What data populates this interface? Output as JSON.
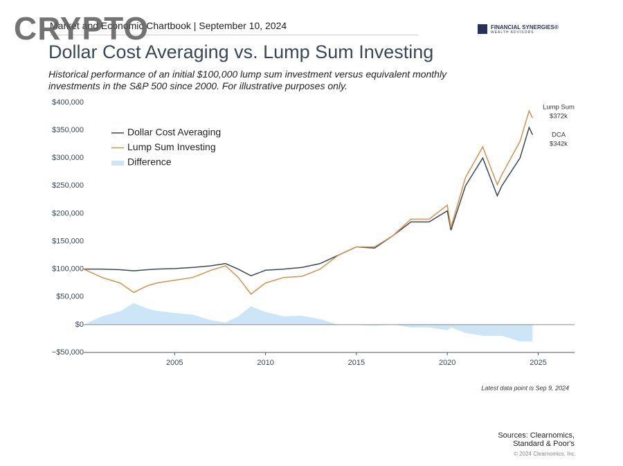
{
  "header": "Market and Economic Chartbook | September 10, 2024",
  "watermark": "CRYPTO",
  "logo": {
    "name": "FINANCIAL SYNERGIES®",
    "tagline": "WEALTH ADVISORS"
  },
  "chart_data": {
    "type": "line",
    "title": "Dollar Cost Averaging vs. Lump Sum Investing",
    "subtitle": "Historical performance of an initial $100,000 lump sum investment versus equivalent monthly investments in the S&P 500 since 2000. For illustrative purposes only.",
    "x": [
      2000,
      2001,
      2002,
      2002.75,
      2003.5,
      2004,
      2005,
      2006,
      2007,
      2007.8,
      2008.5,
      2009.2,
      2010,
      2011,
      2012,
      2013,
      2014,
      2015,
      2016,
      2017,
      2018,
      2019,
      2020,
      2020.2,
      2021,
      2021.95,
      2022.75,
      2023,
      2024,
      2024.5,
      2024.69
    ],
    "series": [
      {
        "name": "Dollar Cost Averaging",
        "color": "#3a4656",
        "values": [
          100000,
          100000,
          99000,
          97000,
          99000,
          100000,
          101000,
          103000,
          106000,
          110000,
          100000,
          88000,
          98000,
          100000,
          103000,
          110000,
          125000,
          140000,
          138000,
          160000,
          185000,
          185000,
          205000,
          170000,
          250000,
          300000,
          232000,
          250000,
          300000,
          355000,
          342000
        ]
      },
      {
        "name": "Lump Sum Investing",
        "color": "#d4914a",
        "values": [
          100000,
          85000,
          75000,
          58000,
          70000,
          75000,
          80000,
          85000,
          98000,
          106000,
          85000,
          55000,
          75000,
          85000,
          87000,
          100000,
          125000,
          140000,
          140000,
          160000,
          190000,
          190000,
          215000,
          175000,
          265000,
          320000,
          252000,
          270000,
          330000,
          385000,
          372000
        ]
      },
      {
        "name": "Difference",
        "type": "area",
        "color": "#cce6f8",
        "values": [
          0,
          15000,
          24000,
          39000,
          29000,
          25000,
          21000,
          18000,
          8000,
          4000,
          15000,
          33000,
          23000,
          15000,
          16000,
          10000,
          0,
          0,
          -2000,
          0,
          -5000,
          -5000,
          -10000,
          -5000,
          -15000,
          -20000,
          -20000,
          -20000,
          -30000,
          -30000,
          -30000
        ]
      }
    ],
    "xlim": [
      2000,
      2027
    ],
    "xticks": [
      2005,
      2010,
      2015,
      2020,
      2025
    ],
    "ylim": [
      -50000,
      400000
    ],
    "yticks": [
      {
        "value": -50000,
        "label": "−$50,000"
      },
      {
        "value": 0,
        "label": "$0"
      },
      {
        "value": 50000,
        "label": "$50,000"
      },
      {
        "value": 100000,
        "label": "$100,000"
      },
      {
        "value": 150000,
        "label": "$150,000"
      },
      {
        "value": 200000,
        "label": "$200,000"
      },
      {
        "value": 250000,
        "label": "$250,000"
      },
      {
        "value": 300000,
        "label": "$300,000"
      },
      {
        "value": 350000,
        "label": "$350,000"
      },
      {
        "value": 400000,
        "label": "$400,000"
      }
    ],
    "legend": "upper left",
    "annotations": [
      "Lump Sum",
      "$372k",
      "DCA",
      "$342k"
    ],
    "note": "Latest data point is Sep 9, 2024",
    "source": [
      "Sources: Clearnomics,",
      "Standard & Poor's"
    ],
    "copyright": "© 2024 Clearnomics, Inc."
  }
}
